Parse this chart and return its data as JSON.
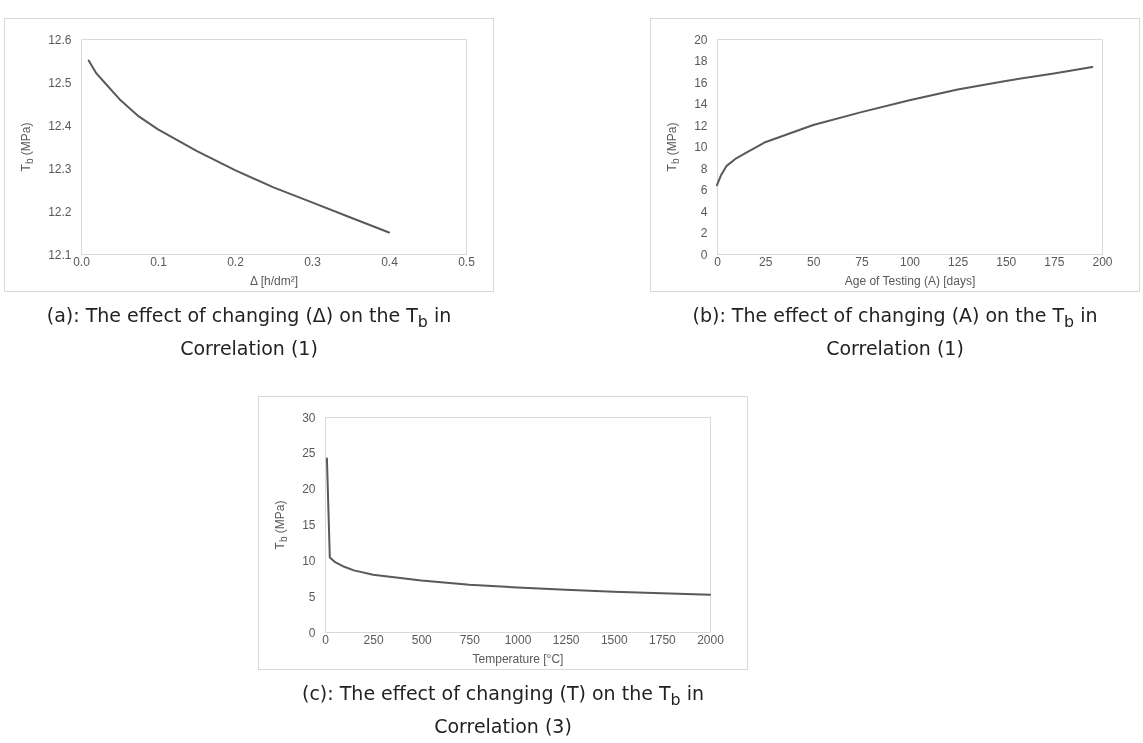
{
  "chart_data": [
    {
      "type": "line",
      "title": "(a): The effect of changing (Δ) on the T$_{b}$ in Correlation (1)",
      "xlabel": "Δ [h/dm²]",
      "ylabel": "T$_{b}$ (MPa)",
      "grid": false,
      "marker": "none",
      "line_style": "solid",
      "xlim": [
        0,
        0.5
      ],
      "xticks": [
        {
          "value": 0,
          "label": "0.0"
        },
        0.1,
        0.2,
        0.3,
        0.4,
        0.5
      ],
      "ylim": [
        12.1,
        12.6
      ],
      "yticks": [
        12.1,
        12.2,
        12.3,
        12.4,
        12.5,
        12.6
      ],
      "x": [
        0.01,
        0.02,
        0.03,
        0.05,
        0.075,
        0.1,
        0.15,
        0.2,
        0.25,
        0.3,
        0.35,
        0.4
      ],
      "series": [
        {
          "color": "#595959",
          "values": [
            12.55,
            12.52,
            12.5,
            12.46,
            12.42,
            12.39,
            12.34,
            12.295,
            12.255,
            12.22,
            12.185,
            12.15
          ]
        }
      ]
    },
    {
      "type": "line",
      "title": "(b): The effect of changing (A) on the T$_{b}$ in Correlation (1)",
      "xlabel": "Age of Testing (A)  [days]",
      "ylabel": "T$_{b}$ (MPa)",
      "grid": false,
      "marker": "none",
      "line_style": "solid",
      "xlim": [
        0,
        200
      ],
      "xticks": [
        0,
        25,
        50,
        75,
        100,
        125,
        150,
        175,
        200
      ],
      "ylim": [
        0,
        20
      ],
      "yticks": [
        0,
        2,
        4,
        6,
        8,
        10,
        12,
        14,
        16,
        18,
        20
      ],
      "x": [
        0,
        2,
        5,
        10,
        15,
        25,
        50,
        75,
        100,
        125,
        150,
        175,
        195
      ],
      "series": [
        {
          "color": "#595959",
          "values": [
            6.4,
            7.3,
            8.2,
            8.9,
            9.4,
            10.4,
            12.0,
            13.2,
            14.3,
            15.3,
            16.1,
            16.8,
            17.4
          ]
        }
      ]
    },
    {
      "type": "line",
      "title": "(c): The effect of changing (T) on the T$_{b}$ in Correlation (3)",
      "xlabel": "Temperature [°C]",
      "ylabel": "T$_{b}$ (MPa)",
      "grid": false,
      "marker": "none",
      "line_style": "solid",
      "xlim": [
        0,
        2000
      ],
      "xticks": [
        0,
        250,
        500,
        750,
        1000,
        1250,
        1500,
        1750,
        2000
      ],
      "ylim": [
        0,
        30
      ],
      "yticks": [
        0,
        5,
        10,
        15,
        20,
        25,
        30
      ],
      "x": [
        10,
        25,
        50,
        100,
        150,
        250,
        500,
        750,
        1000,
        1250,
        1500,
        1750,
        2000
      ],
      "series": [
        {
          "color": "#595959",
          "values": [
            24.2,
            10.4,
            9.8,
            9.1,
            8.6,
            8.0,
            7.2,
            6.6,
            6.2,
            5.9,
            5.6,
            5.4,
            5.2
          ]
        }
      ]
    }
  ]
}
